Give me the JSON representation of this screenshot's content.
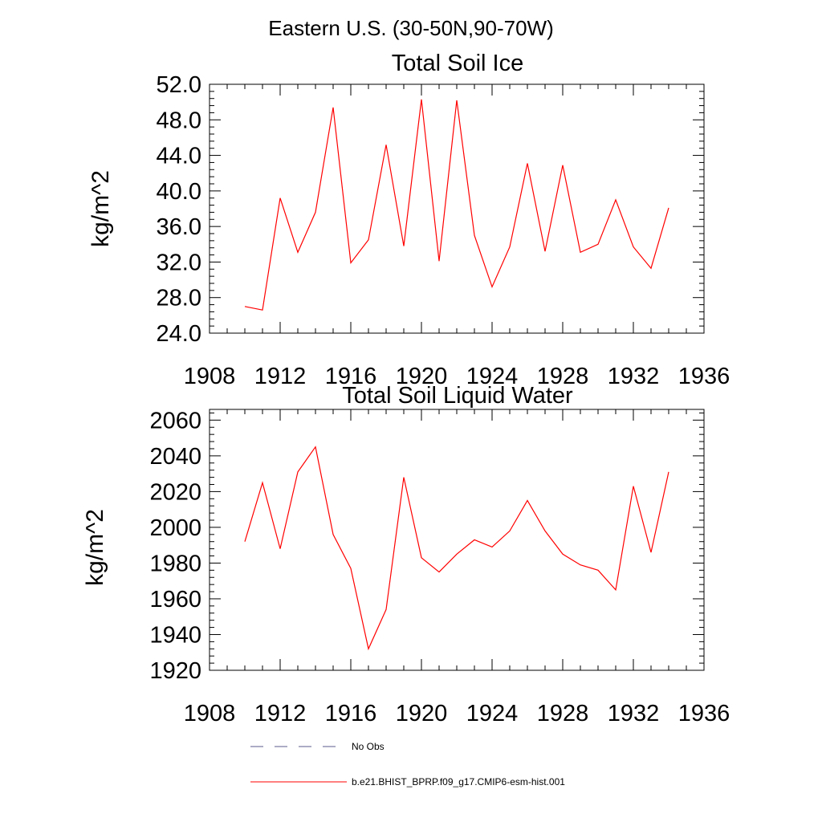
{
  "suptitle": "Eastern U.S. (30-50N,90-70W)",
  "chart_data": [
    {
      "type": "line",
      "title": "Total Soil Ice",
      "ylabel": "kg/m^2",
      "xlabel": "",
      "xlim": [
        1908,
        1936
      ],
      "ylim": [
        24,
        52
      ],
      "xticks": [
        1908,
        1912,
        1916,
        1920,
        1924,
        1928,
        1932,
        1936
      ],
      "yticks": [
        24,
        28,
        32,
        36,
        40,
        44,
        48,
        52
      ],
      "yticklabels": [
        "24.0",
        "28.0",
        "32.0",
        "36.0",
        "40.0",
        "44.0",
        "48.0",
        "52.0"
      ],
      "series": [
        {
          "name": "b.e21.BHIST_BPRP.f09_g17.CMIP6-esm-hist.001",
          "color": "#ff0000",
          "x": [
            1910,
            1911,
            1912,
            1913,
            1914,
            1915,
            1916,
            1917,
            1918,
            1919,
            1920,
            1921,
            1922,
            1923,
            1924,
            1925,
            1926,
            1927,
            1928,
            1929,
            1930,
            1931,
            1932,
            1933,
            1934
          ],
          "values": [
            27.0,
            26.6,
            39.2,
            33.1,
            37.6,
            49.4,
            31.9,
            34.5,
            45.2,
            33.8,
            50.3,
            32.1,
            50.2,
            35.0,
            29.2,
            33.7,
            43.1,
            33.2,
            42.9,
            33.1,
            34.0,
            39.0,
            33.7,
            31.3,
            38.1
          ]
        }
      ]
    },
    {
      "type": "line",
      "title": "Total Soil Liquid Water",
      "ylabel": "kg/m^2",
      "xlabel": "",
      "xlim": [
        1908,
        1936
      ],
      "ylim": [
        1920,
        2066
      ],
      "xticks": [
        1908,
        1912,
        1916,
        1920,
        1924,
        1928,
        1932,
        1936
      ],
      "yticks": [
        1920,
        1940,
        1960,
        1980,
        2000,
        2020,
        2040,
        2060
      ],
      "yticklabels": [
        "1920",
        "1940",
        "1960",
        "1980",
        "2000",
        "2020",
        "2040",
        "2060"
      ],
      "series": [
        {
          "name": "b.e21.BHIST_BPRP.f09_g17.CMIP6-esm-hist.001",
          "color": "#ff0000",
          "x": [
            1910,
            1911,
            1912,
            1913,
            1914,
            1915,
            1916,
            1917,
            1918,
            1919,
            1920,
            1921,
            1922,
            1923,
            1924,
            1925,
            1926,
            1927,
            1928,
            1929,
            1930,
            1931,
            1932,
            1933,
            1934
          ],
          "values": [
            1992,
            2025,
            1988,
            2031,
            2045,
            1996,
            1977,
            1932,
            1954,
            2028,
            1983,
            1975,
            1985,
            1993,
            1989,
            1998,
            2015,
            1998,
            1985,
            1979,
            1976,
            1965,
            2023,
            1986,
            2031
          ]
        }
      ]
    }
  ],
  "legend": [
    {
      "label": "No Obs",
      "color": "#5a5a8c",
      "style": "dashed"
    },
    {
      "label": "b.e21.BHIST_BPRP.f09_g17.CMIP6-esm-hist.001",
      "color": "#ff0000",
      "style": "solid"
    }
  ]
}
